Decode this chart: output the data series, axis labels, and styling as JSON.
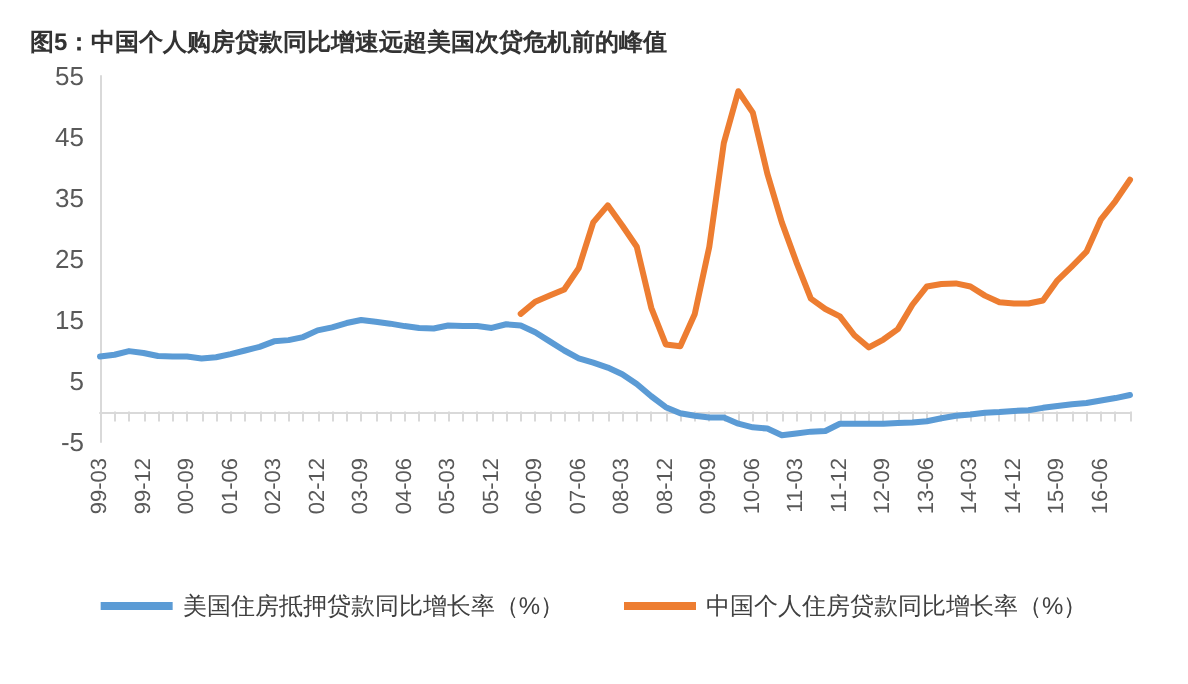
{
  "chart_data": {
    "type": "line",
    "title": "图5：中国个人购房贷款同比增速远超美国次贷危机前的峰值",
    "categories": [
      "99-03",
      null,
      null,
      "99-12",
      null,
      null,
      "00-09",
      null,
      null,
      "01-06",
      null,
      null,
      "02-03",
      null,
      null,
      "02-12",
      null,
      null,
      "03-09",
      null,
      null,
      "04-06",
      null,
      null,
      "05-03",
      null,
      null,
      "05-12",
      null,
      null,
      "06-09",
      null,
      null,
      "07-06",
      null,
      null,
      "08-03",
      null,
      null,
      "08-12",
      null,
      null,
      "09-09",
      null,
      null,
      "10-06",
      null,
      null,
      "11-03",
      null,
      null,
      "11-12",
      null,
      null,
      "12-09",
      null,
      null,
      "13-06",
      null,
      null,
      "14-03",
      null,
      null,
      "14-12",
      null,
      null,
      "15-09",
      null,
      null,
      "16-06",
      null,
      null
    ],
    "series": [
      {
        "name": "美国住房抵押贷款同比增长率（%）",
        "color": "#5b9bd5",
        "values": [
          9.0,
          9.3,
          9.9,
          9.6,
          9.1,
          9.0,
          9.0,
          8.7,
          8.9,
          9.4,
          10.0,
          10.6,
          11.5,
          11.7,
          12.2,
          13.3,
          13.8,
          14.5,
          15.0,
          14.7,
          14.4,
          14.0,
          13.7,
          13.6,
          14.1,
          14.0,
          14.0,
          13.7,
          14.3,
          14.1,
          13.0,
          11.5,
          10.0,
          8.7,
          8.0,
          7.2,
          6.1,
          4.5,
          2.5,
          0.7,
          -0.3,
          -0.7,
          -1.0,
          -1.0,
          -2.0,
          -2.6,
          -2.8,
          -3.9,
          -3.6,
          -3.3,
          -3.2,
          -2.0,
          -2.0,
          -2.0,
          -2.0,
          -1.9,
          -1.8,
          -1.6,
          -1.1,
          -0.7,
          -0.5,
          -0.2,
          -0.1,
          0.1,
          0.2,
          0.6,
          0.9,
          1.2,
          1.4,
          1.8,
          2.2,
          2.7
        ]
      },
      {
        "name": "中国个人住房贷款同比增长率（%）",
        "color": "#ed7d31",
        "values": [
          null,
          null,
          null,
          null,
          null,
          null,
          null,
          null,
          null,
          null,
          null,
          null,
          null,
          null,
          null,
          null,
          null,
          null,
          null,
          null,
          null,
          null,
          null,
          null,
          null,
          null,
          null,
          null,
          null,
          16.0,
          18.0,
          19.0,
          20.0,
          23.5,
          31.0,
          33.8,
          30.5,
          27.0,
          17.0,
          11.0,
          10.7,
          16.0,
          27.0,
          44.0,
          52.5,
          49.0,
          39.0,
          31.0,
          24.5,
          18.5,
          16.8,
          15.6,
          12.5,
          10.5,
          11.8,
          13.5,
          17.5,
          20.5,
          20.9,
          21.0,
          20.5,
          19.0,
          17.9,
          17.7,
          17.7,
          18.2,
          21.5,
          23.8,
          26.2,
          31.5,
          34.5,
          38.0
        ]
      }
    ],
    "ylim": [
      -5,
      55
    ],
    "yticks": [
      -5,
      5,
      15,
      25,
      35,
      45,
      55
    ],
    "grid": false,
    "legend": "bottom",
    "marker": "none",
    "line_style": "solid"
  }
}
